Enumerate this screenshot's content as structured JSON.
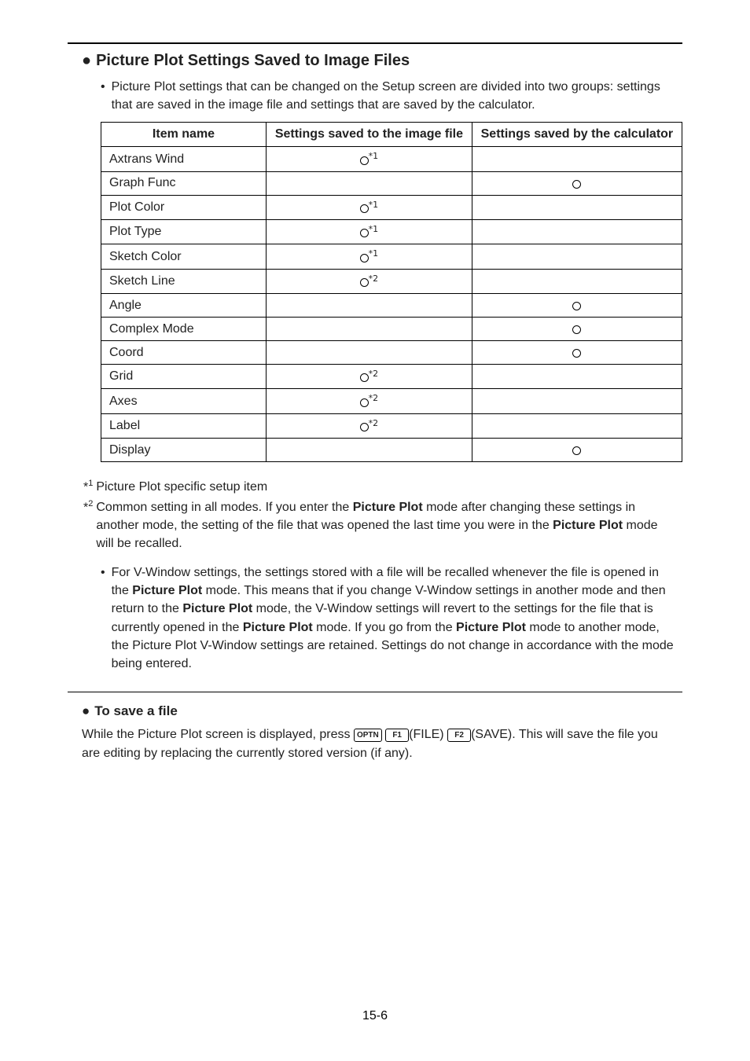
{
  "section_title": "Picture Plot Settings Saved to Image Files",
  "intro_bullet": "Picture Plot settings that can be changed on the Setup screen are divided into two groups: settings that are saved in the image file and settings that are saved by the calculator.",
  "table": {
    "headers": {
      "item": "Item name",
      "c1": "Settings saved to the image file",
      "c2": "Settings saved by the calculator"
    },
    "rows": [
      {
        "name": "Axtrans Wind",
        "c1_mark": true,
        "c1_note": "*1",
        "c2_mark": false
      },
      {
        "name": "Graph Func",
        "c1_mark": false,
        "c1_note": "",
        "c2_mark": true
      },
      {
        "name": "Plot Color",
        "c1_mark": true,
        "c1_note": "*1",
        "c2_mark": false
      },
      {
        "name": "Plot Type",
        "c1_mark": true,
        "c1_note": "*1",
        "c2_mark": false
      },
      {
        "name": "Sketch Color",
        "c1_mark": true,
        "c1_note": "*1",
        "c2_mark": false
      },
      {
        "name": "Sketch Line",
        "c1_mark": true,
        "c1_note": "*2",
        "c2_mark": false
      },
      {
        "name": "Angle",
        "c1_mark": false,
        "c1_note": "",
        "c2_mark": true
      },
      {
        "name": "Complex Mode",
        "c1_mark": false,
        "c1_note": "",
        "c2_mark": true
      },
      {
        "name": "Coord",
        "c1_mark": false,
        "c1_note": "",
        "c2_mark": true
      },
      {
        "name": "Grid",
        "c1_mark": true,
        "c1_note": "*2",
        "c2_mark": false
      },
      {
        "name": "Axes",
        "c1_mark": true,
        "c1_note": "*2",
        "c2_mark": false
      },
      {
        "name": "Label",
        "c1_mark": true,
        "c1_note": "*2",
        "c2_mark": false
      },
      {
        "name": "Display",
        "c1_mark": false,
        "c1_note": "",
        "c2_mark": true
      }
    ]
  },
  "footnotes": {
    "f1_idx": "1",
    "f1_text": "Picture Plot specific setup item",
    "f2_idx": "2",
    "f2_pre": "Common setting in all modes. If you enter the ",
    "f2_mid1": " mode after changing these settings in another mode, the setting of the file that was opened the last time you were in the ",
    "f2_post": " mode will be recalled.",
    "bold_pp": "Picture Plot"
  },
  "vwindow_bullet_parts": {
    "p1": "For V-Window settings, the settings stored with a file will be recalled whenever the file is opened in the ",
    "p2": " mode. This means that if you change V-Window settings in another mode and then return to the ",
    "p3": " mode, the V-Window settings will revert to the settings for the file that is currently opened in the ",
    "p4": " mode. If you go from the ",
    "p5": " mode to another mode, the Picture Plot V-Window settings are retained. Settings do not change in accordance with the mode being entered.",
    "bold": "Picture Plot"
  },
  "save_heading": "To save a file",
  "save_para": {
    "pre": "While the Picture Plot screen is displayed, press ",
    "mid1": "(FILE)",
    "mid2": "(SAVE). This will save the file you are editing by replacing the currently stored version (if any).",
    "k1": "OPTN",
    "k2": "F1",
    "k3": "F2"
  },
  "page_number": "15-6"
}
